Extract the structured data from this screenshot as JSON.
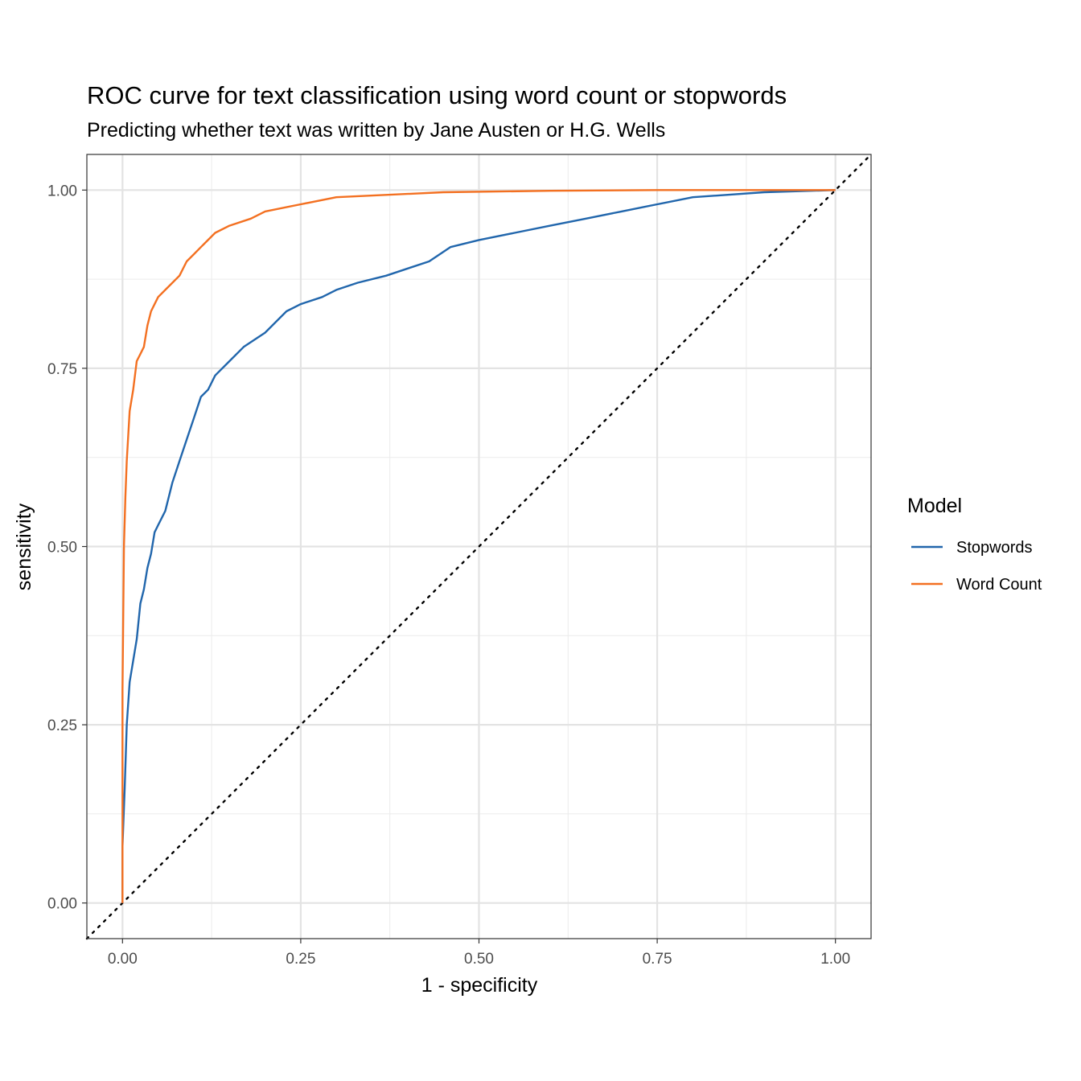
{
  "chart_data": {
    "type": "line",
    "title": "ROC curve for text classification using word count or stopwords",
    "subtitle": "Predicting whether text was written by Jane Austen or H.G. Wells",
    "xlabel": "1 - specificity",
    "ylabel": "sensitivity",
    "xlim": [
      -0.05,
      1.05
    ],
    "ylim": [
      -0.05,
      1.05
    ],
    "x_ticks": [
      "0.00",
      "0.25",
      "0.50",
      "0.75",
      "1.00"
    ],
    "y_ticks": [
      "0.00",
      "0.25",
      "0.50",
      "0.75",
      "1.00"
    ],
    "grid": true,
    "legend": {
      "title": "Model",
      "position": "right"
    },
    "reference_line": {
      "style": "dotted",
      "points": [
        [
          0,
          0
        ],
        [
          1,
          1
        ]
      ]
    },
    "series": [
      {
        "name": "Stopwords",
        "color": "#2166ac",
        "points": [
          [
            0,
            0
          ],
          [
            0.0,
            0.08
          ],
          [
            0.003,
            0.16
          ],
          [
            0.006,
            0.25
          ],
          [
            0.01,
            0.31
          ],
          [
            0.015,
            0.34
          ],
          [
            0.02,
            0.37
          ],
          [
            0.025,
            0.42
          ],
          [
            0.03,
            0.44
          ],
          [
            0.035,
            0.47
          ],
          [
            0.04,
            0.49
          ],
          [
            0.045,
            0.52
          ],
          [
            0.05,
            0.53
          ],
          [
            0.06,
            0.55
          ],
          [
            0.07,
            0.59
          ],
          [
            0.08,
            0.62
          ],
          [
            0.09,
            0.65
          ],
          [
            0.1,
            0.68
          ],
          [
            0.11,
            0.71
          ],
          [
            0.12,
            0.72
          ],
          [
            0.13,
            0.74
          ],
          [
            0.15,
            0.76
          ],
          [
            0.17,
            0.78
          ],
          [
            0.2,
            0.8
          ],
          [
            0.23,
            0.83
          ],
          [
            0.25,
            0.84
          ],
          [
            0.28,
            0.85
          ],
          [
            0.3,
            0.86
          ],
          [
            0.33,
            0.87
          ],
          [
            0.37,
            0.88
          ],
          [
            0.4,
            0.89
          ],
          [
            0.43,
            0.9
          ],
          [
            0.46,
            0.92
          ],
          [
            0.5,
            0.93
          ],
          [
            0.55,
            0.94
          ],
          [
            0.6,
            0.95
          ],
          [
            0.65,
            0.96
          ],
          [
            0.7,
            0.97
          ],
          [
            0.75,
            0.98
          ],
          [
            0.8,
            0.99
          ],
          [
            0.9,
            0.997
          ],
          [
            1.0,
            1.0
          ]
        ]
      },
      {
        "name": "Word Count",
        "color": "#f37021",
        "points": [
          [
            0,
            0
          ],
          [
            0.0,
            0.3
          ],
          [
            0.002,
            0.5
          ],
          [
            0.004,
            0.57
          ],
          [
            0.006,
            0.62
          ],
          [
            0.01,
            0.69
          ],
          [
            0.015,
            0.72
          ],
          [
            0.02,
            0.76
          ],
          [
            0.025,
            0.77
          ],
          [
            0.03,
            0.78
          ],
          [
            0.035,
            0.81
          ],
          [
            0.04,
            0.83
          ],
          [
            0.05,
            0.85
          ],
          [
            0.06,
            0.86
          ],
          [
            0.07,
            0.87
          ],
          [
            0.08,
            0.88
          ],
          [
            0.09,
            0.9
          ],
          [
            0.1,
            0.91
          ],
          [
            0.11,
            0.92
          ],
          [
            0.13,
            0.94
          ],
          [
            0.15,
            0.95
          ],
          [
            0.18,
            0.96
          ],
          [
            0.2,
            0.97
          ],
          [
            0.25,
            0.98
          ],
          [
            0.3,
            0.99
          ],
          [
            0.45,
            0.997
          ],
          [
            0.6,
            0.999
          ],
          [
            0.75,
            1.0
          ],
          [
            1.0,
            1.0
          ]
        ]
      }
    ]
  }
}
